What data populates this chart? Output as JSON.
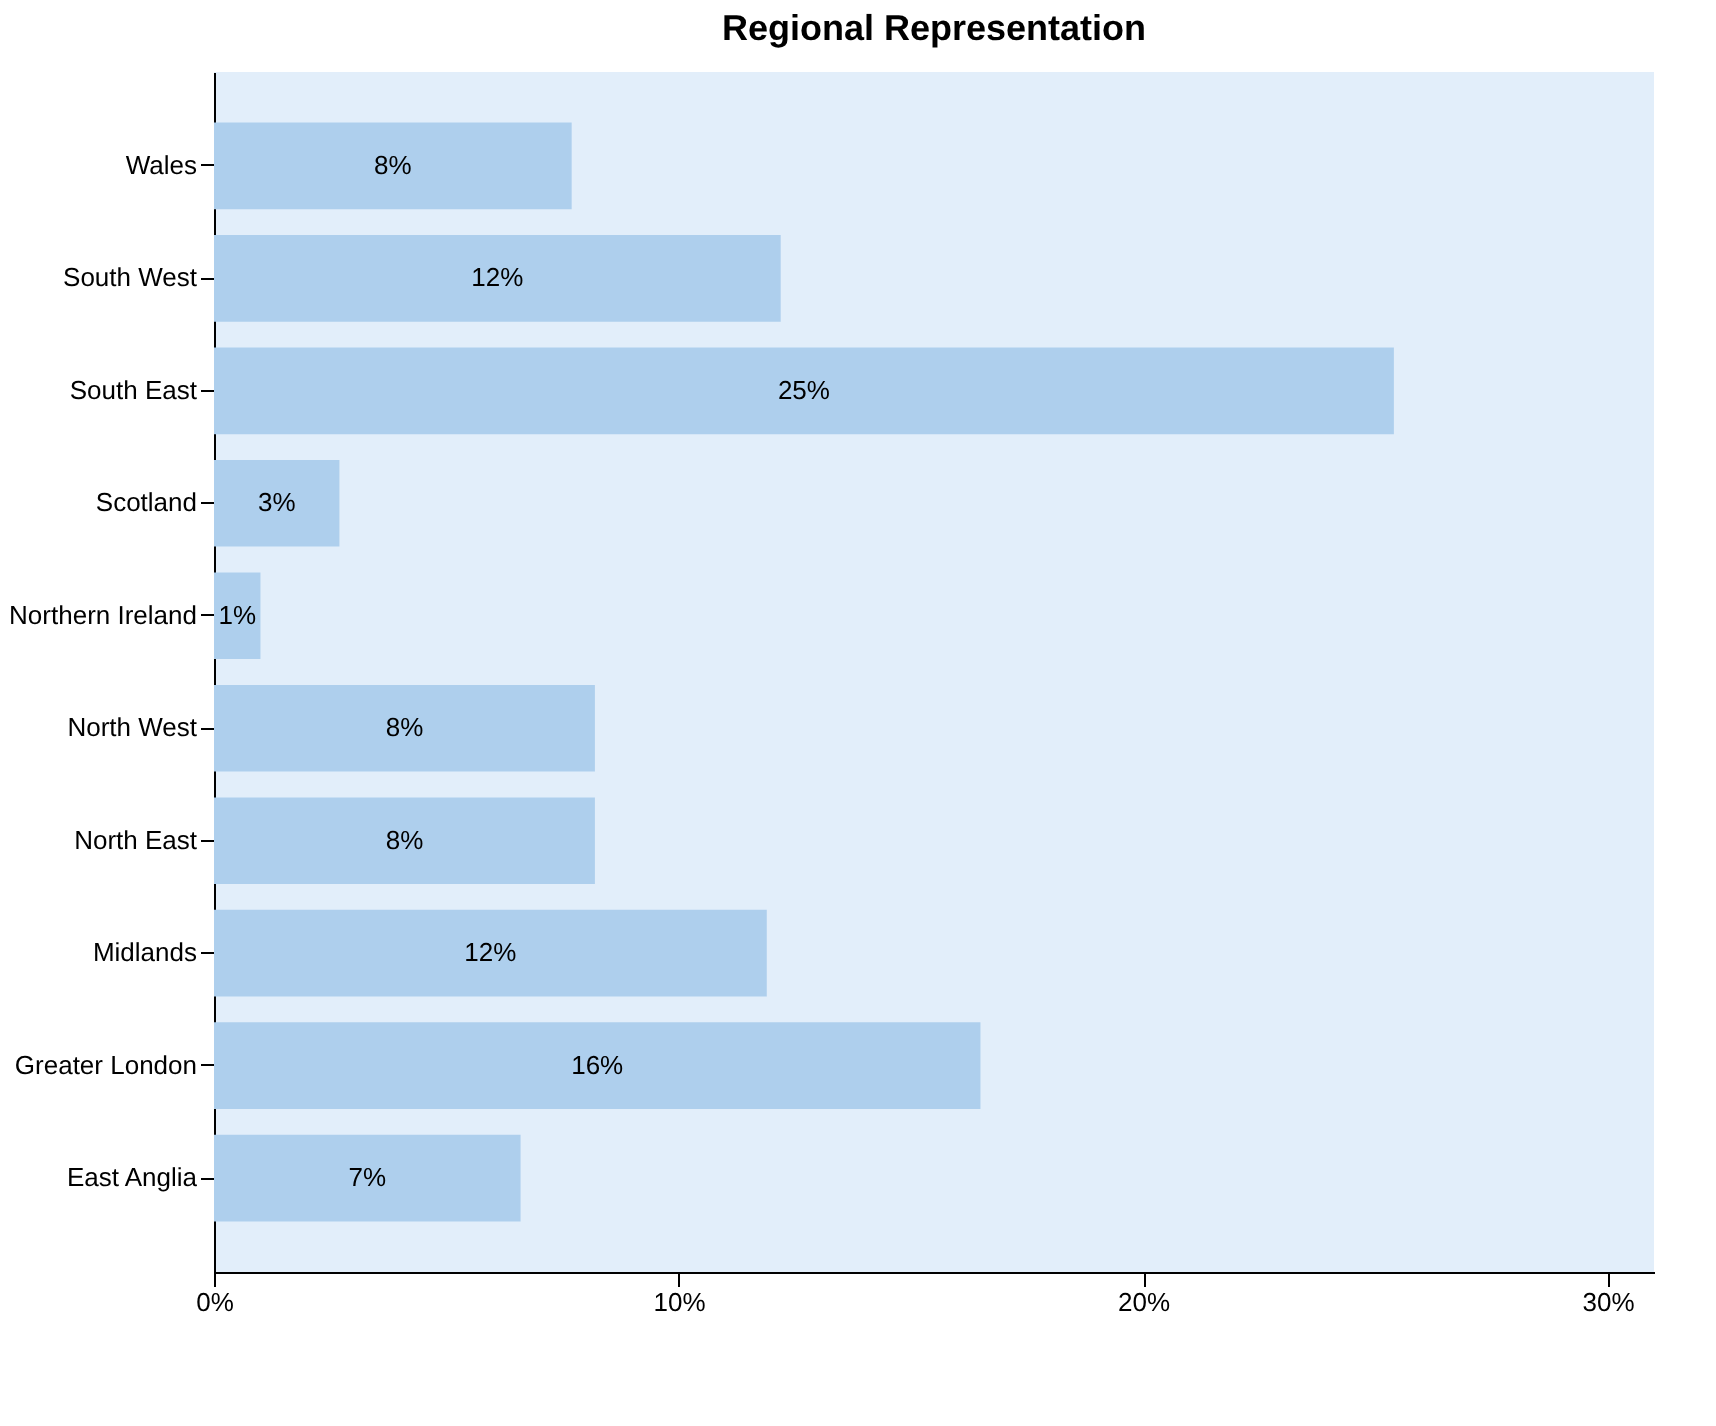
{
  "chart_data": {
    "type": "bar",
    "orientation": "horizontal",
    "title": "Regional Representation",
    "categories": [
      "Wales",
      "South West",
      "South East",
      "Scotland",
      "Northern Ireland",
      "North West",
      "North East",
      "Midlands",
      "Greater London",
      "East Anglia"
    ],
    "values": [
      7.7,
      12.2,
      25.4,
      2.7,
      1.0,
      8.2,
      8.2,
      11.9,
      16.5,
      6.6
    ],
    "value_labels": [
      "8%",
      "12%",
      "25%",
      "3%",
      "1%",
      "8%",
      "8%",
      "12%",
      "16%",
      "7%"
    ],
    "color": "#aecfed",
    "xlim": [
      0,
      31
    ],
    "xticks": [
      {
        "value": 0,
        "label": "0%"
      },
      {
        "value": 10,
        "label": "10%"
      },
      {
        "value": 20,
        "label": "20%"
      },
      {
        "value": 30,
        "label": "30%"
      }
    ],
    "grid": false
  }
}
